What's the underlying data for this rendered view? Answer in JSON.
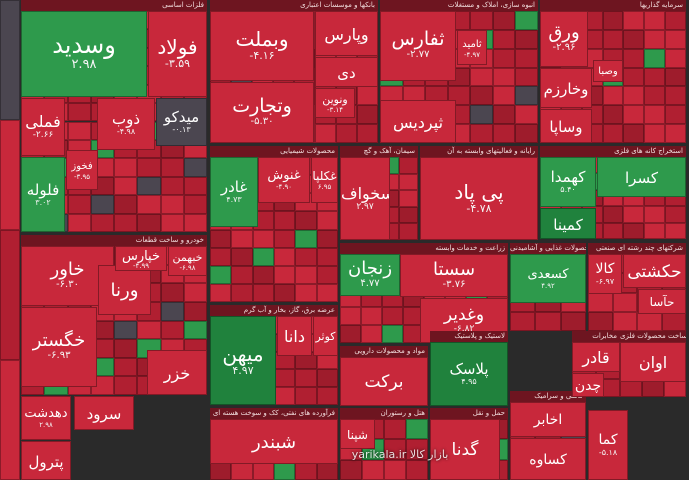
{
  "chart_data": {
    "type": "treemap",
    "color_scale": {
      "negative": "#c8283b",
      "positive": "#2e9a4c",
      "neutral": "#4b4650"
    },
    "sectors": [
      {
        "name": "فلزات اساسی"
      },
      {
        "name": "بانکها و موسسات اعتباری"
      },
      {
        "name": "انبوه سازی، املاک و مستغلات"
      },
      {
        "name": "سرمایه گذاریها"
      },
      {
        "name": "محصولات شیمیایی"
      },
      {
        "name": "خودرو و ساخت قطعات"
      },
      {
        "name": "عرضه برق، گاز، بخار و آب گرم"
      },
      {
        "name": "استخراج کانه های فلزی"
      },
      {
        "name": "فرآورده های نفتی، کک و سوخت هسته ای"
      },
      {
        "name": "زراعت و خدمات وابسته"
      },
      {
        "name": "مواد و محصولات دارویی"
      },
      {
        "name": "لاستیک و پلاستیک"
      },
      {
        "name": "سیمان، آهک و گچ"
      },
      {
        "name": "حمل و نقل"
      },
      {
        "name": "رایانه و فعالیتهای وابسته به آن"
      },
      {
        "name": "محصولات غذایی و آشامیدنی"
      },
      {
        "name": "شرکتهای چند رشته ای صنعتی"
      },
      {
        "name": "کاشی و سرامیک"
      },
      {
        "name": "هتل و رستوران"
      },
      {
        "name": "مخابرات"
      },
      {
        "name": "ساخت محصولات فلزی"
      }
    ],
    "tiles": [
      {
        "symbol": "وسدید",
        "change": "۲.۹۸"
      },
      {
        "symbol": "فولاد",
        "change": "-۳.۵۹"
      },
      {
        "symbol": "فملی",
        "change": "-۲.۶۶"
      },
      {
        "symbol": "ذوب",
        "change": "-۴.۹۸"
      },
      {
        "symbol": "میدکو",
        "change": "-۰.۱۳"
      },
      {
        "symbol": "فلوله",
        "change": "۳.۰۲"
      },
      {
        "symbol": "فخوز",
        "change": "-۳.۹۵"
      },
      {
        "symbol": "وبملت",
        "change": "-۴.۱۶"
      },
      {
        "symbol": "وتجارت",
        "change": "-۵.۳۰"
      },
      {
        "symbol": "وپارس",
        "change": ""
      },
      {
        "symbol": "دی",
        "change": ""
      },
      {
        "symbol": "ونوین",
        "change": "-۳.۱۴"
      },
      {
        "symbol": "ثفارس",
        "change": "-۲.۷۷"
      },
      {
        "symbol": "ثپردیس",
        "change": ""
      },
      {
        "symbol": "ثامید",
        "change": "-۴.۹۷"
      },
      {
        "symbol": "ورق",
        "change": "-۲.۹۶"
      },
      {
        "symbol": "وخارزم",
        "change": ""
      },
      {
        "symbol": "وساپا",
        "change": ""
      },
      {
        "symbol": "وصبا",
        "change": ""
      },
      {
        "symbol": "غنوش",
        "change": "-۴.۹۰"
      },
      {
        "symbol": "غادر",
        "change": "۴.۷۳"
      },
      {
        "symbol": "غکلپا",
        "change": "۶.۹۵"
      },
      {
        "symbol": "سخواف",
        "change": "۲.۹۷"
      },
      {
        "symbol": "پی پاد",
        "change": "-۴.۷۸"
      },
      {
        "symbol": "کهمدا",
        "change": "۵.۴۰"
      },
      {
        "symbol": "کمینا",
        "change": ""
      },
      {
        "symbol": "کسرا",
        "change": ""
      },
      {
        "symbol": "خاور",
        "change": "-۶.۳۰"
      },
      {
        "symbol": "خگستر",
        "change": "-۶.۹۳"
      },
      {
        "symbol": "ورنا",
        "change": ""
      },
      {
        "symbol": "خزر",
        "change": ""
      },
      {
        "symbol": "خپارس",
        "change": "-۴.۹۹"
      },
      {
        "symbol": "خبهمن",
        "change": "-۶.۹۸"
      },
      {
        "symbol": "میهن",
        "change": "۴.۹۷"
      },
      {
        "symbol": "دانا",
        "change": ""
      },
      {
        "symbol": "کوثر",
        "change": ""
      },
      {
        "symbol": "زنجان",
        "change": "۴.۷۷"
      },
      {
        "symbol": "سستا",
        "change": "-۳.۷۶"
      },
      {
        "symbol": "وغدیر",
        "change": "-۶.۸۲"
      },
      {
        "symbol": "کالا",
        "change": "-۶.۹۷"
      },
      {
        "symbol": "حکشتی",
        "change": ""
      },
      {
        "symbol": "حآسا",
        "change": ""
      },
      {
        "symbol": "برکت",
        "change": ""
      },
      {
        "symbol": "پلاسک",
        "change": "۴.۹۵"
      },
      {
        "symbol": "کسعدی",
        "change": "۴.۹۲"
      },
      {
        "symbol": "قادر",
        "change": ""
      },
      {
        "symbol": "چدن",
        "change": ""
      },
      {
        "symbol": "اوان",
        "change": ""
      },
      {
        "symbol": "دهدشت",
        "change": "۲.۹۸"
      },
      {
        "symbol": "سرود",
        "change": ""
      },
      {
        "symbol": "پترول",
        "change": ""
      },
      {
        "symbol": "شبندر",
        "change": ""
      },
      {
        "symbol": "شپنا",
        "change": ""
      },
      {
        "symbol": "گدنا",
        "change": ""
      },
      {
        "symbol": "اخابر",
        "change": ""
      },
      {
        "symbol": "کساوه",
        "change": ""
      },
      {
        "symbol": "کما",
        "change": "-۵.۱۸"
      }
    ],
    "watermark": "yarikala.ir   بازار کالا"
  }
}
